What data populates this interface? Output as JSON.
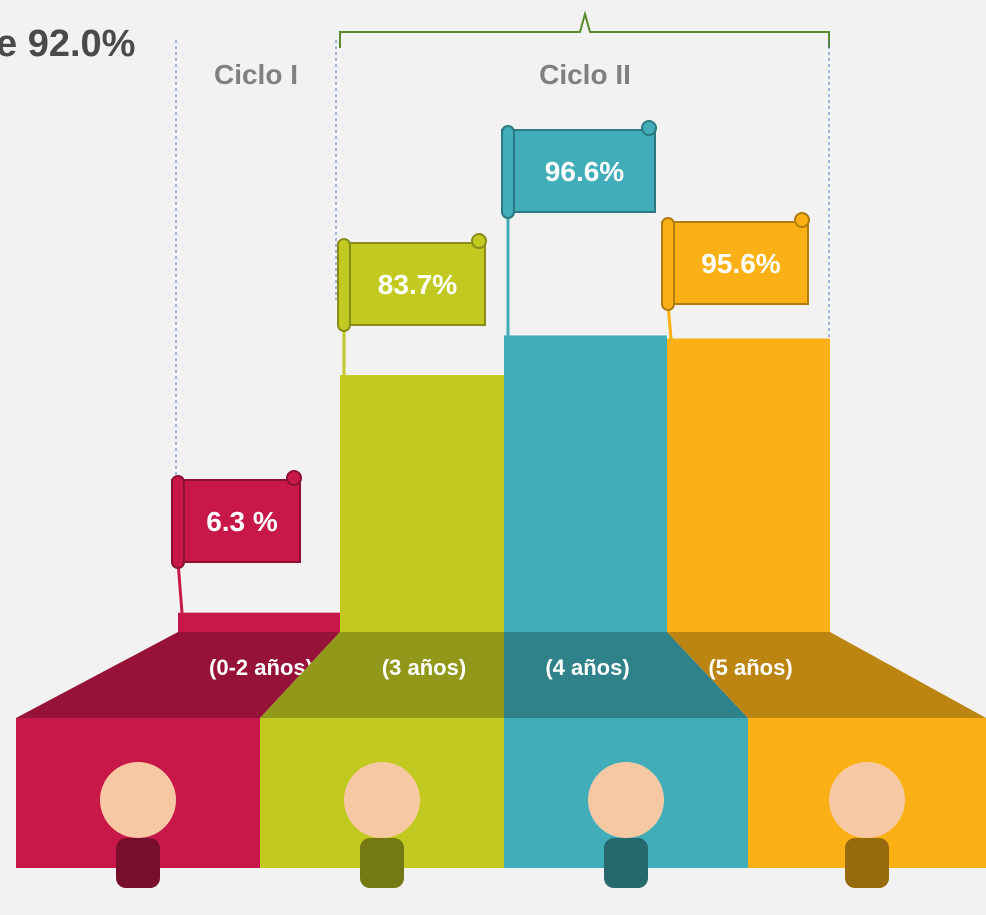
{
  "chart_data": {
    "type": "bar",
    "title": "e 92.0%",
    "cycle_labels": [
      "Ciclo I",
      "Ciclo II"
    ],
    "categories": [
      "(0-2 años)",
      "(3 años)",
      "(4 años)",
      "(5 años)"
    ],
    "values": [
      6.3,
      83.7,
      96.6,
      95.6
    ],
    "value_labels": [
      "6.3 %",
      "83.7%",
      "96.6%",
      "95.6%"
    ],
    "colors": [
      "#c8184a",
      "#c2ca22",
      "#40adb8",
      "#fbb116"
    ]
  }
}
